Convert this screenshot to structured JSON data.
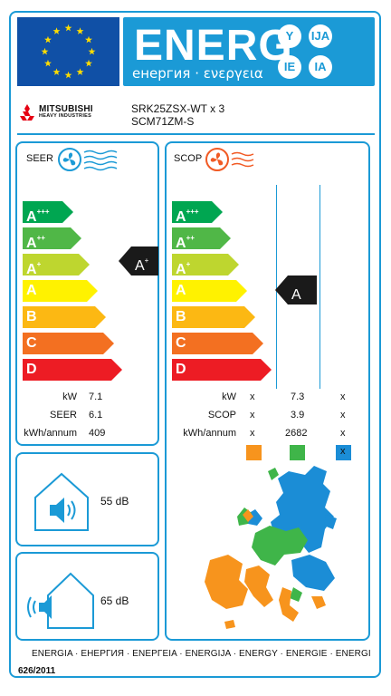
{
  "header": {
    "title": "ENERG",
    "subtitle": "енергия · ενεργεια",
    "lang_badges": [
      "Y",
      "IJA",
      "IE",
      "IA"
    ]
  },
  "brand": {
    "name": "MITSUBISHI",
    "subname": "HEAVY INDUSTRIES",
    "models": [
      "SRK25ZSX-WT x 3",
      "SCM71ZM-S"
    ]
  },
  "seer": {
    "title": "SEER",
    "classes": [
      {
        "label": "A",
        "sup": "+++",
        "color": "#00a651"
      },
      {
        "label": "A",
        "sup": "++",
        "color": "#50b747"
      },
      {
        "label": "A",
        "sup": "+",
        "color": "#bed62f"
      },
      {
        "label": "A",
        "sup": "",
        "color": "#fff200"
      },
      {
        "label": "B",
        "sup": "",
        "color": "#fcb813"
      },
      {
        "label": "C",
        "sup": "",
        "color": "#f37021"
      },
      {
        "label": "D",
        "sup": "",
        "color": "#ed1c24"
      }
    ],
    "rating": {
      "label": "A",
      "sup": "+"
    },
    "specs": [
      {
        "label": "kW",
        "value": "7.1"
      },
      {
        "label": "SEER",
        "value": "6.1"
      },
      {
        "label": "kWh/annum",
        "value": "409"
      }
    ]
  },
  "scop": {
    "title": "SCOP",
    "classes": [
      {
        "label": "A",
        "sup": "+++",
        "color": "#00a651"
      },
      {
        "label": "A",
        "sup": "++",
        "color": "#50b747"
      },
      {
        "label": "A",
        "sup": "+",
        "color": "#bed62f"
      },
      {
        "label": "A",
        "sup": "",
        "color": "#fff200"
      },
      {
        "label": "B",
        "sup": "",
        "color": "#fcb813"
      },
      {
        "label": "C",
        "sup": "",
        "color": "#f37021"
      },
      {
        "label": "D",
        "sup": "",
        "color": "#ed1c24"
      }
    ],
    "rating": {
      "label": "A",
      "sup": ""
    },
    "specs": [
      {
        "label": "kW",
        "values": [
          "x",
          "7.3",
          "x"
        ]
      },
      {
        "label": "SCOP",
        "values": [
          "x",
          "3.9",
          "x"
        ]
      },
      {
        "label": "kWh/annum",
        "values": [
          "x",
          "2682",
          "x"
        ]
      }
    ],
    "zone_colors": [
      "#f7941d",
      "#3fb549",
      "#1b8dd6"
    ],
    "zone_markers": [
      "",
      "",
      "x"
    ]
  },
  "noise": {
    "indoor": "55 dB",
    "outdoor": "65 dB"
  },
  "footer": {
    "languages": "ENERGIA · ЕНЕРГИЯ · ΕΝΕΡΓΕΙΑ · ENERGIJA · ENERGY · ENERGIE · ENERGI",
    "regulation": "626/2011"
  },
  "colors": {
    "accent": "#1b9ad6",
    "eu_blue": "#1050a6",
    "star": "#ffdd00",
    "marker": "#1a1a1a"
  }
}
